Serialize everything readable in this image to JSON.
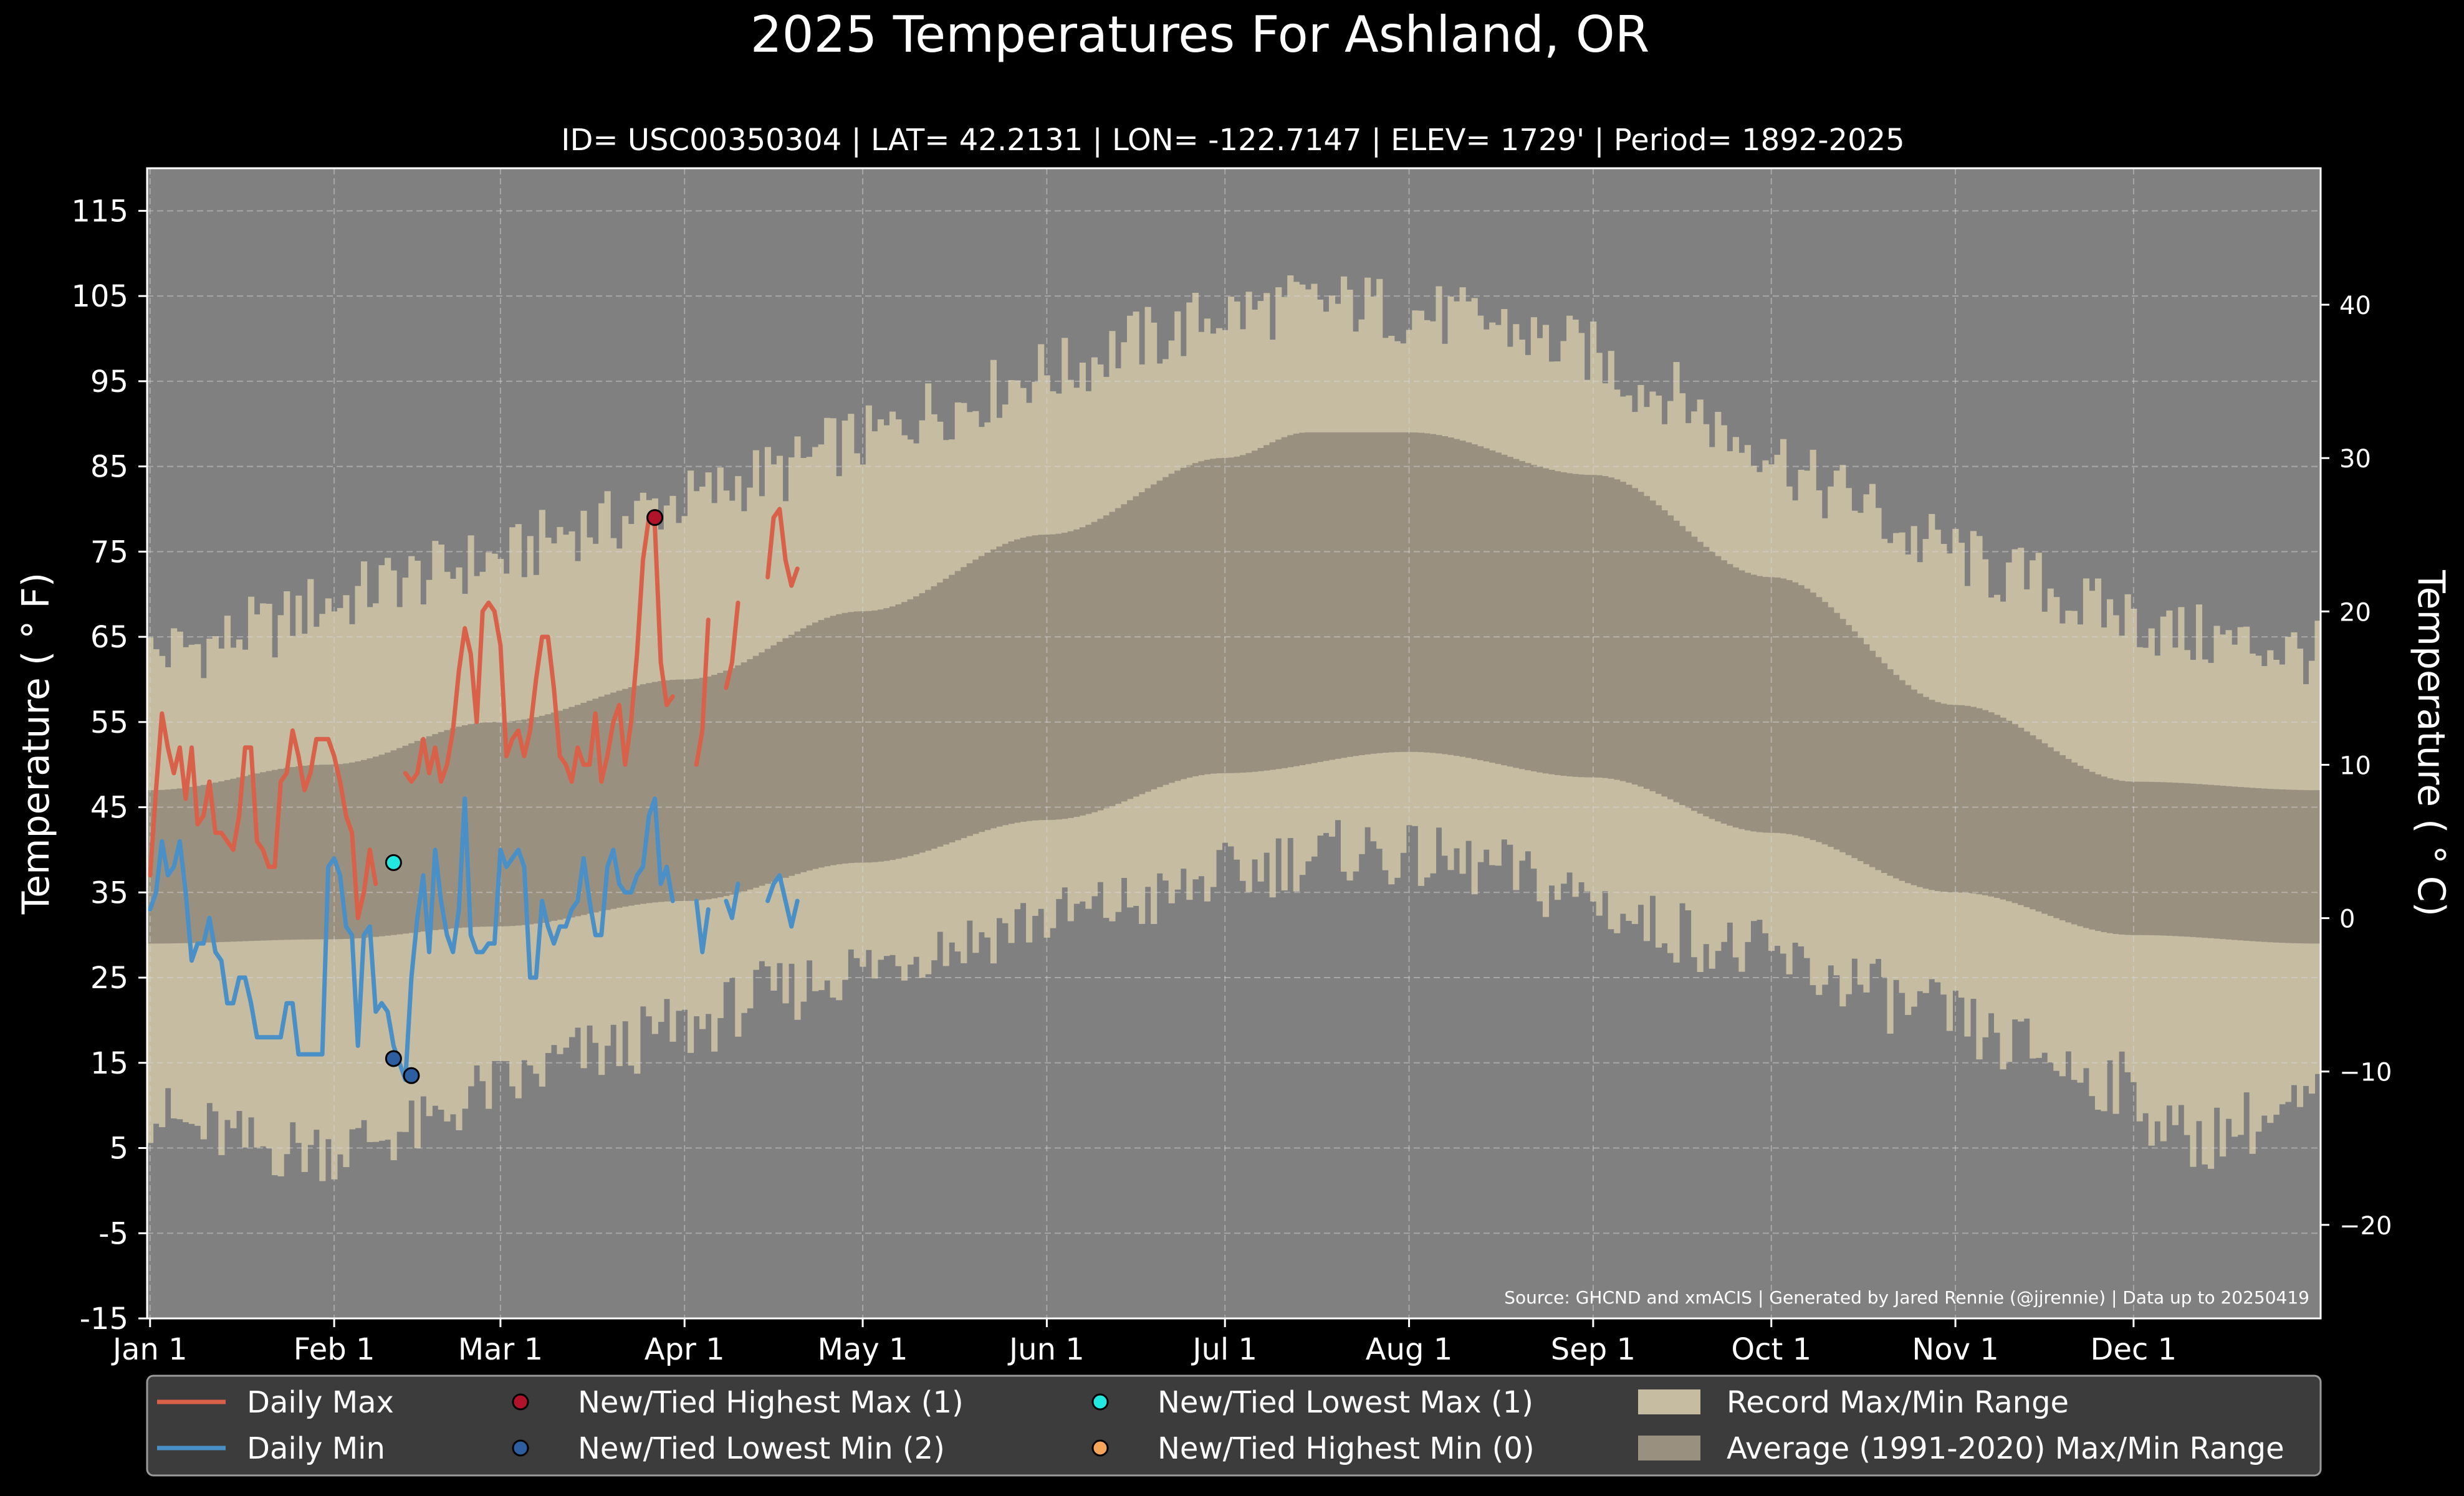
{
  "chart_data": {
    "type": "line",
    "title": "2025 Temperatures For Ashland, OR",
    "subtitle": "ID= USC00350304 | LAT= 42.2131 | LON= -122.7147 | ELEV= 1729' | Period= 1892-2025",
    "ylabel": "Temperature ( ° F)",
    "ylabel_right": "Temperature ( ° C)",
    "source": "Source: GHCND and xmACIS | Generated by Jared Rennie (@jjrennie) | Data up to 20250419",
    "ylim": [
      -15,
      120
    ],
    "yticks": [
      -15,
      -5,
      5,
      15,
      25,
      35,
      45,
      55,
      65,
      75,
      85,
      95,
      105,
      115
    ],
    "ytick_labels": [
      "-15",
      "-5",
      "5",
      "15",
      "25",
      "35",
      "45",
      "55",
      "65",
      "75",
      "85",
      "95",
      "105",
      "115"
    ],
    "ylim_right": [
      -26.1,
      48.9
    ],
    "yticks_right": [
      -20,
      -10,
      0,
      10,
      20,
      30,
      40
    ],
    "ytick_labels_right": [
      "−20",
      "−10",
      "0",
      "10",
      "20",
      "30",
      "40"
    ],
    "xlim": [
      0.5,
      366.5
    ],
    "xticks": [
      1,
      32,
      60,
      91,
      121,
      152,
      182,
      213,
      244,
      274,
      305,
      335
    ],
    "xtick_labels": [
      "Jan 1",
      "Feb 1",
      "Mar 1",
      "Apr 1",
      "May 1",
      "Jun 1",
      "Jul 1",
      "Aug 1",
      "Sep 1",
      "Oct 1",
      "Nov 1",
      "Dec 1"
    ],
    "grid": true,
    "colors": {
      "background": "#000000",
      "plot_background": "#808080",
      "record_range": "#c5bca2",
      "average_range": "#9a9080",
      "daily_max": "#d9614a",
      "daily_min": "#4a90c6",
      "highest_max_marker": "#b1132b",
      "lowest_min_marker": "#2c5ea0",
      "lowest_max_marker": "#22e8e0",
      "highest_min_marker": "#f5a55a",
      "legend_bg": "#3c3c3c",
      "text": "#ffffff"
    },
    "record_max_anchors": {
      "days": [
        1,
        10,
        20,
        31,
        45,
        59,
        75,
        91,
        105,
        120,
        135,
        152,
        170,
        182,
        195,
        205,
        213,
        225,
        240,
        255,
        270,
        285,
        300,
        315,
        330,
        345,
        355,
        366
      ],
      "values": [
        63,
        64,
        66,
        69,
        72,
        74,
        78,
        81,
        84,
        88,
        92,
        96,
        100,
        103,
        104,
        104,
        103,
        102,
        99,
        94,
        88,
        82,
        76,
        72,
        68,
        65,
        64,
        63
      ]
    },
    "record_min_anchors": {
      "days": [
        1,
        10,
        20,
        31,
        45,
        59,
        75,
        91,
        105,
        120,
        135,
        152,
        170,
        182,
        195,
        205,
        213,
        225,
        240,
        255,
        270,
        285,
        300,
        315,
        330,
        345,
        355,
        366
      ],
      "values": [
        9,
        7,
        5,
        5,
        7,
        12,
        16,
        19,
        23,
        26,
        29,
        32,
        34,
        37,
        39,
        40,
        39,
        38,
        35,
        31,
        28,
        25,
        21,
        17,
        13,
        6,
        8,
        10
      ]
    },
    "average_max_anchors": {
      "days": [
        1,
        31,
        59,
        91,
        121,
        152,
        182,
        196,
        213,
        244,
        274,
        305,
        335,
        366
      ],
      "values": [
        47,
        50,
        55,
        60,
        68,
        77,
        86,
        89,
        89,
        84,
        72,
        57,
        48,
        47
      ]
    },
    "average_min_anchors": {
      "days": [
        1,
        31,
        59,
        91,
        121,
        152,
        182,
        213,
        244,
        274,
        305,
        335,
        366
      ],
      "values": [
        29,
        29.5,
        31,
        34,
        38.5,
        43.5,
        49,
        51.5,
        48.5,
        42,
        35,
        30,
        29
      ]
    },
    "series": [
      {
        "name": "Daily Max",
        "x": [
          1,
          2,
          3,
          4,
          5,
          6,
          7,
          8,
          9,
          10,
          11,
          12,
          13,
          14,
          15,
          16,
          17,
          18,
          19,
          20,
          21,
          22,
          23,
          24,
          25,
          26,
          27,
          28,
          29,
          30,
          31,
          32,
          33,
          34,
          35,
          36,
          37,
          38,
          39,
          null,
          44,
          45,
          46,
          47,
          48,
          49,
          50,
          51,
          52,
          53,
          54,
          55,
          56,
          57,
          58,
          59,
          60,
          61,
          62,
          63,
          64,
          65,
          66,
          67,
          68,
          69,
          70,
          71,
          72,
          73,
          74,
          75,
          76,
          77,
          78,
          79,
          80,
          81,
          82,
          83,
          84,
          85,
          86,
          87,
          88,
          89,
          null,
          93,
          94,
          95,
          null,
          98,
          99,
          100
        ],
        "y": [
          37,
          47,
          56,
          52,
          49,
          52,
          46,
          52,
          43,
          44,
          48,
          42,
          42,
          41,
          40,
          44,
          52,
          52,
          41,
          40,
          38,
          38,
          48,
          49,
          54,
          51,
          47,
          49,
          53,
          53,
          53,
          51,
          48,
          44,
          42,
          32,
          35,
          40,
          36,
          null,
          49,
          48,
          49,
          53,
          49,
          52,
          48,
          50,
          54,
          61,
          66,
          63,
          55,
          68,
          69,
          68,
          64,
          51,
          53,
          54,
          51,
          54,
          60,
          65,
          65,
          59,
          51,
          50,
          48,
          52,
          50,
          50,
          56,
          48,
          51,
          55,
          57,
          50,
          55,
          63,
          74,
          79,
          78,
          62,
          57,
          58,
          null,
          50,
          54,
          67,
          null,
          59,
          62,
          69
        ],
        "x2": [
          105,
          106,
          107,
          108,
          109,
          110
        ],
        "y2": [
          72,
          79,
          80,
          74,
          71,
          73
        ]
      },
      {
        "name": "Daily Min",
        "x": [
          1,
          2,
          3,
          4,
          5,
          6,
          7,
          8,
          9,
          10,
          11,
          12,
          13,
          14,
          15,
          16,
          17,
          18,
          19,
          20,
          21,
          22,
          23,
          24,
          25,
          26,
          27,
          28,
          29,
          30,
          31,
          32,
          33,
          34,
          35,
          36,
          37,
          38,
          39,
          40,
          41,
          42,
          43,
          44,
          45,
          46,
          47,
          48,
          49,
          50,
          51,
          52,
          53,
          54,
          55,
          56,
          57,
          58,
          59,
          60,
          61,
          62,
          63,
          64,
          65,
          66,
          67,
          68,
          69,
          70,
          71,
          72,
          73,
          74,
          75,
          76,
          77,
          78,
          79,
          80,
          81,
          82,
          83,
          84,
          85,
          86,
          87,
          88,
          89,
          null,
          93,
          94,
          95,
          null,
          98,
          99,
          100,
          null,
          105,
          106,
          107,
          108,
          109,
          110
        ],
        "y": [
          33,
          35,
          41,
          37,
          38,
          41,
          35,
          27,
          29,
          29,
          32,
          28,
          27,
          22,
          22,
          25,
          25,
          22,
          18,
          18,
          18,
          18,
          18,
          22,
          22,
          16,
          16,
          16,
          16,
          16,
          38,
          39,
          37,
          31,
          30,
          17,
          30,
          31,
          21,
          22,
          21,
          17,
          15,
          13,
          25,
          32,
          37,
          28,
          40,
          34,
          30,
          28,
          33,
          46,
          30,
          28,
          28,
          29,
          29,
          40,
          38,
          39,
          40,
          38,
          25,
          25,
          34,
          31,
          29,
          31,
          31,
          33,
          34,
          39,
          34,
          30,
          30,
          38,
          40,
          36,
          35,
          35,
          37,
          38,
          44,
          46,
          36,
          38,
          34,
          null,
          34,
          28,
          33,
          null,
          34,
          32,
          36,
          null,
          34,
          36,
          37,
          34,
          31,
          34
        ]
      }
    ],
    "markers": [
      {
        "name": "New/Tied Highest Max (1)",
        "x": [
          86
        ],
        "y": [
          79
        ]
      },
      {
        "name": "New/Tied Lowest Min (2)",
        "x": [
          42,
          45
        ],
        "y": [
          15.5,
          13.5
        ]
      },
      {
        "name": "New/Tied Lowest Max (1)",
        "x": [
          42
        ],
        "y": [
          38.5
        ]
      },
      {
        "name": "New/Tied Highest Min (0)",
        "x": [],
        "y": []
      }
    ],
    "legend": {
      "placement": "bottom",
      "items": [
        {
          "label": "Daily Max",
          "kind": "line",
          "color": "#d9614a"
        },
        {
          "label": "New/Tied Highest Max (1)",
          "kind": "marker",
          "color": "#b1132b"
        },
        {
          "label": "New/Tied Lowest Max (1)",
          "kind": "marker",
          "color": "#22e8e0"
        },
        {
          "label": "Record Max/Min Range",
          "kind": "patch",
          "color": "#c5bca2"
        },
        {
          "label": "Daily Min",
          "kind": "line",
          "color": "#4a90c6"
        },
        {
          "label": "New/Tied Lowest Min (2)",
          "kind": "marker",
          "color": "#2c5ea0"
        },
        {
          "label": "New/Tied Highest Min (0)",
          "kind": "marker",
          "color": "#f5a55a"
        },
        {
          "label": "Average (1991-2020) Max/Min Range",
          "kind": "patch",
          "color": "#9a9080"
        }
      ]
    }
  }
}
